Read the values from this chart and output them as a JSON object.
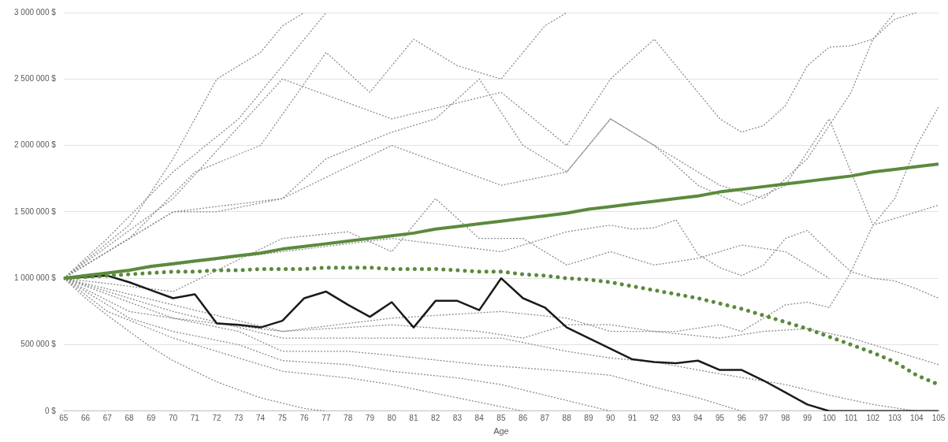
{
  "chart_data": {
    "type": "line",
    "xlabel": "Age",
    "x": [
      65,
      66,
      67,
      68,
      69,
      70,
      71,
      72,
      73,
      74,
      75,
      76,
      77,
      78,
      79,
      80,
      81,
      82,
      83,
      84,
      85,
      86,
      87,
      88,
      89,
      90,
      91,
      92,
      93,
      94,
      95,
      96,
      97,
      98,
      99,
      100,
      101,
      102,
      103,
      104,
      105
    ],
    "xlim": [
      65,
      105
    ],
    "xticks": [
      65,
      66,
      67,
      68,
      69,
      70,
      71,
      72,
      73,
      74,
      75,
      76,
      77,
      78,
      79,
      80,
      81,
      82,
      83,
      84,
      85,
      86,
      87,
      88,
      89,
      90,
      91,
      92,
      93,
      94,
      95,
      96,
      97,
      98,
      99,
      100,
      101,
      102,
      103,
      104,
      105
    ],
    "ylim": [
      0,
      3000000
    ],
    "yticks": [
      {
        "value": 0,
        "label": "0 $"
      },
      {
        "value": 500000,
        "label": "500 000 $"
      },
      {
        "value": 1000000,
        "label": "1 000 000 $"
      },
      {
        "value": 1500000,
        "label": "1 500 000 $"
      },
      {
        "value": 2000000,
        "label": "2 000 000 $"
      },
      {
        "value": 2500000,
        "label": "2 500 000 $"
      },
      {
        "value": 3000000,
        "label": "3 000 000 $"
      }
    ],
    "grid": "y",
    "marker": "none",
    "series": [
      {
        "color": "#5b8a3c",
        "line_style": "solid",
        "values": [
          1000000,
          1020000,
          1040000,
          1060000,
          1090000,
          1110000,
          1130000,
          1150000,
          1170000,
          1190000,
          1220000,
          1240000,
          1260000,
          1280000,
          1300000,
          1320000,
          1340000,
          1370000,
          1390000,
          1410000,
          1430000,
          1450000,
          1470000,
          1490000,
          1520000,
          1540000,
          1560000,
          1580000,
          1600000,
          1620000,
          1650000,
          1670000,
          1690000,
          1710000,
          1730000,
          1750000,
          1770000,
          1800000,
          1820000,
          1840000,
          1860000
        ]
      },
      {
        "color": "#5b8a3c",
        "line_style": "dotted",
        "values": [
          1000000,
          1010000,
          1020000,
          1030000,
          1040000,
          1050000,
          1050000,
          1060000,
          1060000,
          1070000,
          1070000,
          1070000,
          1080000,
          1080000,
          1080000,
          1070000,
          1070000,
          1070000,
          1060000,
          1050000,
          1050000,
          1030000,
          1020000,
          1000000,
          990000,
          970000,
          940000,
          910000,
          880000,
          850000,
          810000,
          770000,
          720000,
          670000,
          620000,
          560000,
          500000,
          440000,
          370000,
          270000,
          200000
        ]
      },
      {
        "color": "#1a1a1a",
        "line_style": "solid",
        "values": [
          1000000,
          1010000,
          1020000,
          970000,
          910000,
          850000,
          880000,
          660000,
          650000,
          630000,
          680000,
          850000,
          900000,
          800000,
          710000,
          820000,
          630000,
          830000,
          830000,
          760000,
          1000000,
          850000,
          780000,
          630000,
          550000,
          470000,
          390000,
          370000,
          360000,
          380000,
          310000,
          310000,
          230000,
          140000,
          50000,
          0,
          0,
          0,
          0,
          0,
          0
        ]
      },
      {
        "color": "#8c8c8c",
        "line_style": "dotted",
        "x": [
          65,
          66,
          67,
          68,
          69,
          70,
          71,
          72,
          73,
          74,
          75,
          76,
          77
        ],
        "values": [
          1000000,
          850000,
          720000,
          600000,
          480000,
          380000,
          300000,
          220000,
          160000,
          100000,
          60000,
          20000,
          0
        ]
      },
      {
        "color": "#8c8c8c",
        "line_style": "dotted",
        "x": [
          65,
          67,
          70,
          72,
          75,
          78,
          80,
          83,
          86
        ],
        "values": [
          1000000,
          750000,
          550000,
          450000,
          300000,
          250000,
          200000,
          100000,
          0
        ]
      },
      {
        "color": "#8c8c8c",
        "line_style": "dotted",
        "x": [
          65,
          68,
          70,
          73,
          75,
          78,
          80,
          83,
          85,
          88,
          90
        ],
        "values": [
          1000000,
          700000,
          600000,
          500000,
          380000,
          350000,
          300000,
          250000,
          200000,
          80000,
          0
        ]
      },
      {
        "color": "#8c8c8c",
        "line_style": "dotted",
        "x": [
          65,
          68,
          70,
          73,
          75,
          78,
          80,
          84,
          88,
          90,
          92,
          94,
          96
        ],
        "values": [
          1000000,
          750000,
          700000,
          600000,
          450000,
          450000,
          420000,
          350000,
          300000,
          270000,
          180000,
          100000,
          0
        ]
      },
      {
        "color": "#8c8c8c",
        "line_style": "dotted",
        "x": [
          65,
          70,
          75,
          80,
          85,
          88,
          90,
          92,
          95,
          98,
          100,
          102,
          104
        ],
        "values": [
          1000000,
          750000,
          550000,
          550000,
          550000,
          450000,
          400000,
          370000,
          280000,
          200000,
          120000,
          50000,
          0
        ]
      },
      {
        "color": "#8c8c8c",
        "line_style": "dotted",
        "x": [
          65,
          70,
          75,
          80,
          84,
          86,
          88,
          90,
          92,
          95,
          97,
          99,
          101,
          103,
          105
        ],
        "values": [
          1000000,
          800000,
          600000,
          650000,
          600000,
          550000,
          650000,
          650000,
          600000,
          550000,
          600000,
          620000,
          550000,
          450000,
          350000
        ]
      },
      {
        "color": "#8c8c8c",
        "line_style": "dotted",
        "x": [
          65,
          70,
          75,
          80,
          85,
          88,
          90,
          91,
          92,
          93,
          94,
          95,
          96,
          97,
          98,
          99,
          100,
          101,
          102,
          103,
          104,
          105
        ],
        "values": [
          1000000,
          1100000,
          1200000,
          1300000,
          1200000,
          1350000,
          1400000,
          1370000,
          1380000,
          1440000,
          1180000,
          1080000,
          1020000,
          1100000,
          1300000,
          1360000,
          1200000,
          1050000,
          1000000,
          980000,
          920000,
          850000
        ]
      },
      {
        "color": "#8c8c8c",
        "line_style": "dotted",
        "x": [
          65,
          70,
          75,
          80,
          85,
          88,
          90,
          93,
          95,
          96,
          97,
          98,
          99,
          100,
          101,
          102,
          103,
          104,
          105
        ],
        "values": [
          1000000,
          700000,
          600000,
          700000,
          750000,
          700000,
          600000,
          600000,
          650000,
          600000,
          700000,
          800000,
          820000,
          780000,
          1050000,
          1400000,
          1450000,
          1500000,
          1550000
        ]
      },
      {
        "color": "#8c8c8c",
        "line_style": "dotted",
        "x": [
          65,
          70,
          75,
          80,
          85,
          88,
          90,
          92,
          94,
          96,
          98,
          100,
          101,
          102,
          103,
          104,
          105
        ],
        "values": [
          1000000,
          1500000,
          1600000,
          2000000,
          1700000,
          1800000,
          2200000,
          2000000,
          1700000,
          1550000,
          1700000,
          2200000,
          1800000,
          1400000,
          1600000,
          2000000,
          2290000
        ]
      },
      {
        "color": "#8c8c8c",
        "line_style": "dotted",
        "x": [
          65,
          70,
          75,
          80,
          85,
          88,
          90,
          92,
          94,
          95,
          96,
          97,
          98,
          99,
          100,
          101,
          102,
          103,
          104
        ],
        "values": [
          1000000,
          1600000,
          2500000,
          2200000,
          2400000,
          2000000,
          2500000,
          2800000,
          2400000,
          2200000,
          2100000,
          2150000,
          2300000,
          2600000,
          2740000,
          2750000,
          2800000,
          2950000,
          3000000
        ]
      },
      {
        "color": "#8c8c8c",
        "line_style": "dotted",
        "x": [
          65,
          68,
          70,
          72,
          74,
          75,
          76
        ],
        "values": [
          1000000,
          1400000,
          1900000,
          2500000,
          2700000,
          2900000,
          3000000
        ]
      },
      {
        "color": "#8c8c8c",
        "line_style": "dotted",
        "x": [
          65,
          67,
          70,
          73,
          75,
          77
        ],
        "values": [
          1000000,
          1300000,
          1800000,
          2200000,
          2600000,
          3000000
        ]
      },
      {
        "color": "#8c8c8c",
        "line_style": "dotted",
        "x": [
          65,
          70,
          72,
          75,
          77,
          80,
          82,
          84,
          86,
          88,
          90,
          91,
          93,
          95,
          97,
          99,
          101,
          102,
          103
        ],
        "values": [
          1000000,
          1500000,
          1500000,
          1600000,
          1900000,
          2100000,
          2200000,
          2500000,
          2000000,
          1800000,
          2200000,
          2100000,
          1900000,
          1700000,
          1600000,
          1900000,
          2400000,
          2800000,
          3000000
        ]
      },
      {
        "color": "#8c8c8c",
        "line_style": "dotted",
        "x": [
          65,
          68,
          71,
          74,
          77,
          79,
          81,
          83,
          85,
          87,
          88
        ],
        "values": [
          1000000,
          1300000,
          1800000,
          2000000,
          2700000,
          2400000,
          2800000,
          2600000,
          2500000,
          2900000,
          3000000
        ]
      },
      {
        "color": "#8c8c8c",
        "line_style": "dotted",
        "x": [
          65,
          70,
          75,
          78,
          80,
          82,
          84,
          86,
          88,
          90,
          92,
          94,
          96,
          98,
          100
        ],
        "values": [
          1000000,
          900000,
          1300000,
          1350000,
          1200000,
          1600000,
          1300000,
          1300000,
          1100000,
          1200000,
          1100000,
          1150000,
          1250000,
          1200000,
          1000000
        ]
      }
    ]
  }
}
